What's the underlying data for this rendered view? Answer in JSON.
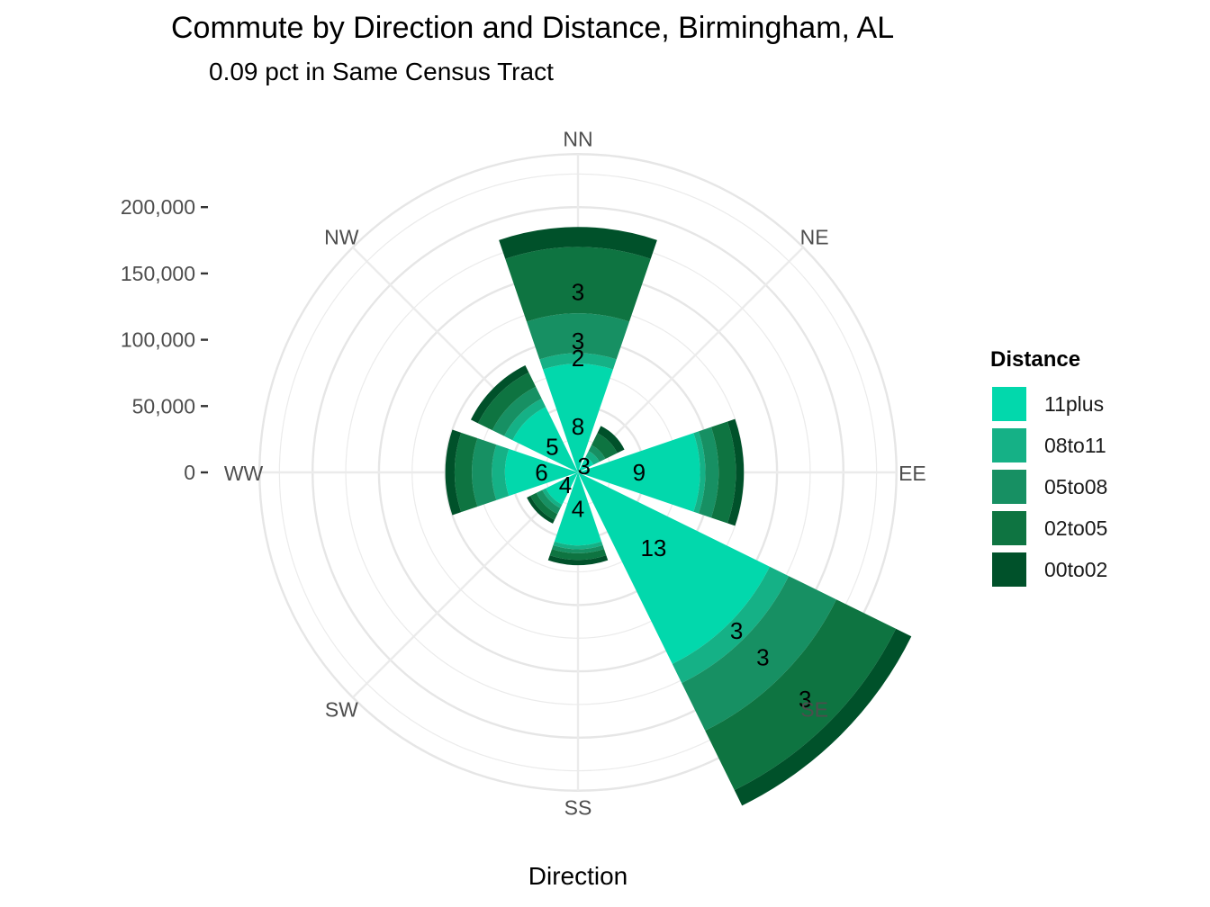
{
  "title": "Commute by Direction and Distance, Birmingham, AL",
  "subtitle": "0.09 pct in Same Census Tract",
  "chart_data": {
    "type": "bar",
    "coord": "polar",
    "title": "Commute by Direction and Distance, Birmingham, AL",
    "subtitle": "0.09 pct in Same Census Tract",
    "xlabel": "Direction",
    "ylabel": "",
    "ylim": [
      0,
      240000
    ],
    "y_ticks": [
      "0",
      "50,000",
      "100,000",
      "150,000",
      "200,000"
    ],
    "y_tick_values": [
      0,
      50000,
      100000,
      150000,
      200000
    ],
    "grid": true,
    "legend_position": "right",
    "legend_title": "Distance",
    "categories": [
      "NN",
      "NE",
      "EE",
      "SE",
      "SS",
      "SW",
      "WW",
      "NW"
    ],
    "series": [
      {
        "name": "00to02",
        "color": "#00512a",
        "values": [
          15000,
          6000,
          6000,
          13000,
          4000,
          3000,
          7000,
          6000
        ]
      },
      {
        "name": "02to05",
        "color": "#0e7441",
        "values": [
          50000,
          10000,
          13000,
          50000,
          5000,
          5000,
          13000,
          12000
        ]
      },
      {
        "name": "05to08",
        "color": "#179063",
        "values": [
          30000,
          5000,
          10000,
          40000,
          3000,
          5000,
          15000,
          10000
        ]
      },
      {
        "name": "08to11",
        "color": "#15b186",
        "values": [
          8000,
          5000,
          4000,
          16000,
          3000,
          3000,
          10000,
          7000
        ]
      },
      {
        "name": "11plus",
        "color": "#02d8ac",
        "values": [
          82000,
          13000,
          92000,
          161000,
          55000,
          27000,
          55000,
          55000
        ]
      }
    ],
    "bar_labels": [
      {
        "category": "NN",
        "series": "11plus",
        "label": "8"
      },
      {
        "category": "NN",
        "series": "08to11",
        "label": "2"
      },
      {
        "category": "NN",
        "series": "05to08",
        "label": "3"
      },
      {
        "category": "NN",
        "series": "02to05",
        "label": "3"
      },
      {
        "category": "NE",
        "series": "11plus",
        "label": "3"
      },
      {
        "category": "EE",
        "series": "11plus",
        "label": "9"
      },
      {
        "category": "SE",
        "series": "02to05",
        "label": "3"
      },
      {
        "category": "SE",
        "series": "05to08",
        "label": "3"
      },
      {
        "category": "SE",
        "series": "08to11",
        "label": "3"
      },
      {
        "category": "SE",
        "series": "11plus",
        "label": "13"
      },
      {
        "category": "SS",
        "series": "11plus",
        "label": "4"
      },
      {
        "category": "SW",
        "series": "11plus",
        "label": "4"
      },
      {
        "category": "WW",
        "series": "11plus",
        "label": "6"
      },
      {
        "category": "NW",
        "series": "11plus",
        "label": "5"
      }
    ]
  },
  "legend": {
    "title": "Distance",
    "items": [
      {
        "label": "11plus",
        "color": "#02d8ac"
      },
      {
        "label": "08to11",
        "color": "#15b186"
      },
      {
        "label": "05to08",
        "color": "#179063"
      },
      {
        "label": "02to05",
        "color": "#0e7441"
      },
      {
        "label": "00to02",
        "color": "#00512a"
      }
    ]
  }
}
